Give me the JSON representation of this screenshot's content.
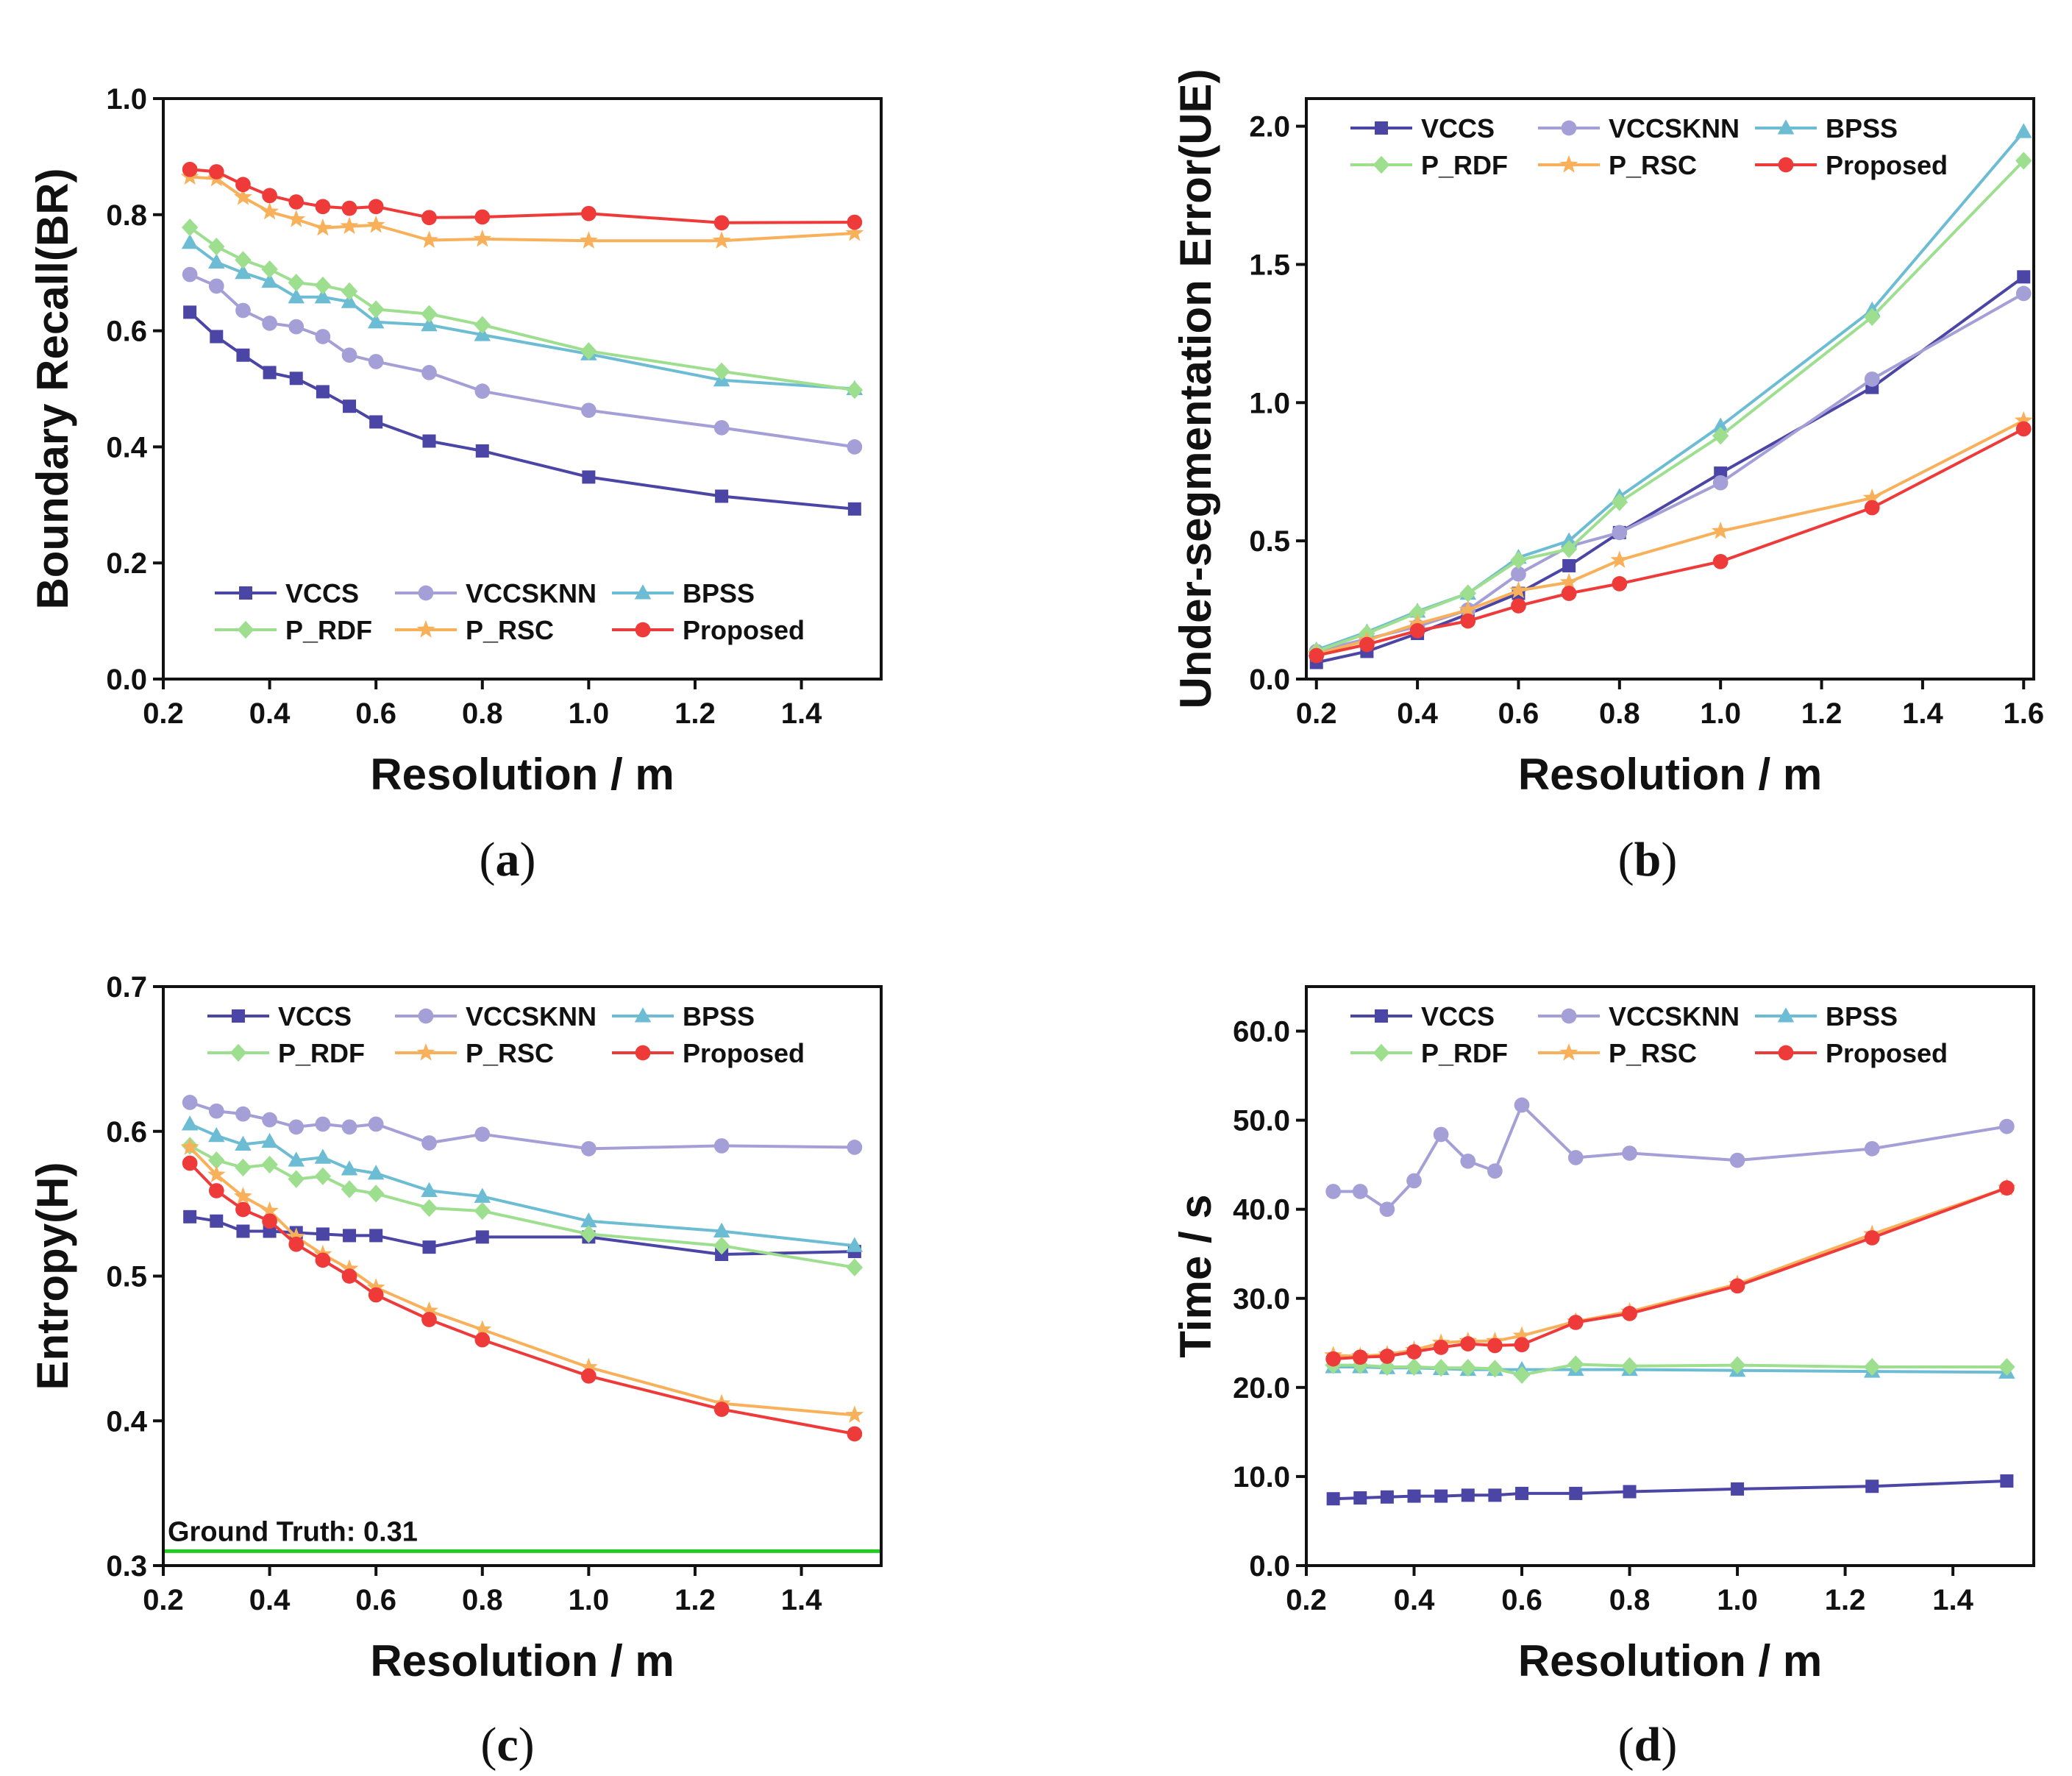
{
  "colors": {
    "VCCS": "#4b45a6",
    "VCCSKNN": "#a49fd6",
    "BPSS": "#6cbcd4",
    "P_RDF": "#9ddf8f",
    "P_RSC": "#f8b15a",
    "Proposed": "#ef3a3a",
    "ground_truth": "#22cc22"
  },
  "series_names": [
    "VCCS",
    "VCCSKNN",
    "BPSS",
    "P_RDF",
    "P_RSC",
    "Proposed"
  ],
  "markers": {
    "VCCS": "square",
    "VCCSKNN": "circle",
    "BPSS": "triangle",
    "P_RDF": "diamond",
    "P_RSC": "star",
    "Proposed": "circle"
  },
  "chart_data": [
    {
      "type": "line",
      "panel_label": "a",
      "xlabel": "Resolution / m",
      "ylabel": "Boundary Recall(BR)",
      "xlim": [
        0.2,
        1.55
      ],
      "ylim": [
        0.0,
        1.0
      ],
      "xticks": [
        0.2,
        0.4,
        0.6,
        0.8,
        1.0,
        1.2,
        1.4
      ],
      "xtick_labels": [
        "0.2",
        "0.4",
        "0.6",
        "0.8",
        "1.0",
        "1.2",
        "1.4"
      ],
      "yticks": [
        0.0,
        0.2,
        0.4,
        0.6,
        0.8,
        1.0
      ],
      "ytick_labels": [
        "0.0",
        "0.2",
        "0.4",
        "0.6",
        "0.8",
        "1.0"
      ],
      "legend_position": "bottom",
      "x": [
        0.25,
        0.3,
        0.35,
        0.4,
        0.45,
        0.5,
        0.55,
        0.6,
        0.7,
        0.8,
        1.0,
        1.25,
        1.5
      ],
      "series": [
        {
          "name": "VCCS",
          "values": [
            0.632,
            0.59,
            0.558,
            0.528,
            0.518,
            0.495,
            0.47,
            0.443,
            0.41,
            0.393,
            0.348,
            0.315,
            0.293
          ]
        },
        {
          "name": "VCCSKNN",
          "values": [
            0.697,
            0.677,
            0.635,
            0.613,
            0.607,
            0.59,
            0.558,
            0.547,
            0.528,
            0.496,
            0.463,
            0.433,
            0.4
          ]
        },
        {
          "name": "BPSS",
          "values": [
            0.752,
            0.718,
            0.7,
            0.685,
            0.658,
            0.658,
            0.65,
            0.615,
            0.61,
            0.593,
            0.56,
            0.515,
            0.5
          ]
        },
        {
          "name": "P_RDF",
          "values": [
            0.778,
            0.745,
            0.722,
            0.706,
            0.683,
            0.678,
            0.668,
            0.637,
            0.629,
            0.61,
            0.565,
            0.53,
            0.498
          ]
        },
        {
          "name": "P_RSC",
          "values": [
            0.865,
            0.862,
            0.83,
            0.805,
            0.792,
            0.777,
            0.78,
            0.782,
            0.756,
            0.758,
            0.755,
            0.755,
            0.768
          ]
        },
        {
          "name": "Proposed",
          "values": [
            0.878,
            0.874,
            0.852,
            0.833,
            0.822,
            0.814,
            0.811,
            0.814,
            0.795,
            0.796,
            0.802,
            0.786,
            0.787
          ]
        }
      ]
    },
    {
      "type": "line",
      "panel_label": "b",
      "xlabel": "Resolution / m",
      "ylabel": "Under-segmentation Error(UE)",
      "xlim": [
        0.18,
        1.62
      ],
      "ylim": [
        0.0,
        2.1
      ],
      "xticks": [
        0.2,
        0.4,
        0.6,
        0.8,
        1.0,
        1.2,
        1.4,
        1.6
      ],
      "xtick_labels": [
        "0.2",
        "0.4",
        "0.6",
        "0.8",
        "1.0",
        "1.2",
        "1.4",
        "1.6"
      ],
      "yticks": [
        0.0,
        0.5,
        1.0,
        1.5,
        2.0
      ],
      "ytick_labels": [
        "0.0",
        "0.5",
        "1.0",
        "1.5",
        "2.0"
      ],
      "legend_position": "top",
      "x": [
        0.2,
        0.3,
        0.4,
        0.5,
        0.6,
        0.7,
        0.8,
        1.0,
        1.3,
        1.6
      ],
      "series": [
        {
          "name": "VCCS",
          "values": [
            0.06,
            0.1,
            0.165,
            0.235,
            0.31,
            0.41,
            0.53,
            0.745,
            1.055,
            1.455
          ]
        },
        {
          "name": "VCCSKNN",
          "values": [
            0.1,
            0.145,
            0.19,
            0.25,
            0.38,
            0.48,
            0.53,
            0.71,
            1.085,
            1.395
          ]
        },
        {
          "name": "BPSS",
          "values": [
            0.105,
            0.17,
            0.245,
            0.31,
            0.44,
            0.5,
            0.66,
            0.915,
            1.335,
            1.98
          ]
        },
        {
          "name": "P_RDF",
          "values": [
            0.1,
            0.165,
            0.24,
            0.31,
            0.43,
            0.47,
            0.64,
            0.88,
            1.31,
            1.875
          ]
        },
        {
          "name": "P_RSC",
          "values": [
            0.09,
            0.14,
            0.2,
            0.25,
            0.32,
            0.35,
            0.43,
            0.535,
            0.655,
            0.935
          ]
        },
        {
          "name": "Proposed",
          "values": [
            0.085,
            0.125,
            0.175,
            0.21,
            0.265,
            0.31,
            0.345,
            0.425,
            0.62,
            0.905
          ]
        }
      ]
    },
    {
      "type": "line",
      "panel_label": "c",
      "xlabel": "Resolution / m",
      "ylabel": "Entropy(H)",
      "xlim": [
        0.2,
        1.55
      ],
      "ylim": [
        0.3,
        0.7
      ],
      "xticks": [
        0.2,
        0.4,
        0.6,
        0.8,
        1.0,
        1.2,
        1.4
      ],
      "xtick_labels": [
        "0.2",
        "0.4",
        "0.6",
        "0.8",
        "1.0",
        "1.2",
        "1.4"
      ],
      "yticks": [
        0.3,
        0.4,
        0.5,
        0.6,
        0.7
      ],
      "ytick_labels": [
        "0.3",
        "0.4",
        "0.5",
        "0.6",
        "0.7"
      ],
      "legend_position": "top",
      "annotation": {
        "text": "Ground Truth: 0.31",
        "value": 0.31
      },
      "x": [
        0.25,
        0.3,
        0.35,
        0.4,
        0.45,
        0.5,
        0.55,
        0.6,
        0.7,
        0.8,
        1.0,
        1.25,
        1.5
      ],
      "series": [
        {
          "name": "VCCS",
          "values": [
            0.541,
            0.538,
            0.531,
            0.531,
            0.53,
            0.529,
            0.528,
            0.528,
            0.52,
            0.527,
            0.527,
            0.515,
            0.517
          ]
        },
        {
          "name": "VCCSKNN",
          "values": [
            0.62,
            0.614,
            0.612,
            0.608,
            0.603,
            0.605,
            0.603,
            0.605,
            0.592,
            0.598,
            0.588,
            0.59,
            0.589
          ]
        },
        {
          "name": "BPSS",
          "values": [
            0.605,
            0.597,
            0.591,
            0.593,
            0.58,
            0.582,
            0.574,
            0.571,
            0.559,
            0.555,
            0.538,
            0.531,
            0.521
          ]
        },
        {
          "name": "P_RDF",
          "values": [
            0.59,
            0.58,
            0.575,
            0.577,
            0.567,
            0.569,
            0.56,
            0.557,
            0.547,
            0.545,
            0.529,
            0.521,
            0.506
          ]
        },
        {
          "name": "P_RSC",
          "values": [
            0.589,
            0.57,
            0.555,
            0.545,
            0.527,
            0.515,
            0.505,
            0.492,
            0.476,
            0.463,
            0.437,
            0.412,
            0.404
          ]
        },
        {
          "name": "Proposed",
          "values": [
            0.578,
            0.559,
            0.546,
            0.538,
            0.522,
            0.511,
            0.5,
            0.487,
            0.47,
            0.456,
            0.431,
            0.408,
            0.391
          ]
        }
      ]
    },
    {
      "type": "line",
      "panel_label": "d",
      "xlabel": "Resolution / m",
      "ylabel": "Time / s",
      "xlim": [
        0.2,
        1.55
      ],
      "ylim": [
        0.0,
        65.0
      ],
      "xticks": [
        0.2,
        0.4,
        0.6,
        0.8,
        1.0,
        1.2,
        1.4
      ],
      "xtick_labels": [
        "0.2",
        "0.4",
        "0.6",
        "0.8",
        "1.0",
        "1.2",
        "1.4"
      ],
      "yticks": [
        0,
        10,
        20,
        30,
        40,
        50,
        60
      ],
      "ytick_labels": [
        "0.0",
        "10.0",
        "20.0",
        "30.0",
        "40.0",
        "50.0",
        "60.0"
      ],
      "legend_position": "top",
      "x": [
        0.25,
        0.3,
        0.35,
        0.4,
        0.45,
        0.5,
        0.55,
        0.6,
        0.7,
        0.8,
        1.0,
        1.25,
        1.5
      ],
      "series": [
        {
          "name": "VCCS",
          "values": [
            7.5,
            7.6,
            7.7,
            7.8,
            7.8,
            7.9,
            7.9,
            8.1,
            8.1,
            8.3,
            8.6,
            8.9,
            9.5
          ]
        },
        {
          "name": "VCCSKNN",
          "values": [
            42.0,
            42.0,
            40.0,
            43.2,
            48.4,
            45.4,
            44.3,
            51.7,
            45.8,
            46.3,
            45.5,
            46.8,
            49.3
          ]
        },
        {
          "name": "BPSS",
          "values": [
            22.3,
            22.3,
            22.2,
            22.2,
            22.1,
            22.0,
            22.0,
            22.0,
            22.0,
            22.0,
            21.9,
            21.8,
            21.7
          ]
        },
        {
          "name": "P_RDF",
          "values": [
            22.5,
            22.5,
            22.3,
            22.3,
            22.2,
            22.2,
            22.1,
            21.4,
            22.6,
            22.4,
            22.5,
            22.3,
            22.3
          ]
        },
        {
          "name": "P_RSC",
          "values": [
            23.6,
            23.5,
            23.7,
            24.2,
            25.0,
            25.2,
            25.2,
            25.8,
            27.4,
            28.5,
            31.6,
            37.2,
            42.4
          ]
        },
        {
          "name": "Proposed",
          "values": [
            23.2,
            23.4,
            23.5,
            24.0,
            24.5,
            24.9,
            24.7,
            24.8,
            27.3,
            28.3,
            31.4,
            36.8,
            42.4
          ]
        }
      ]
    }
  ]
}
